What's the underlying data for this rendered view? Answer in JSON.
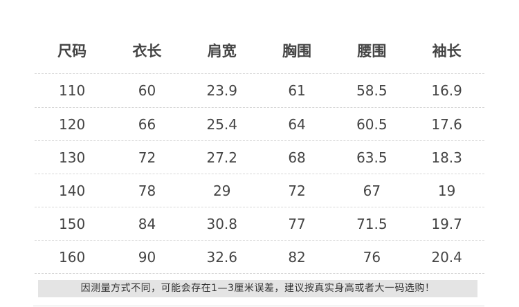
{
  "headers": [
    "尺码",
    "衣长",
    "肩宽",
    "胸围",
    "腰围",
    "袖长"
  ],
  "rows": [
    [
      "110",
      "60",
      "23.9",
      "61",
      "58.5",
      "16.9"
    ],
    [
      "120",
      "66",
      "25.4",
      "64",
      "60.5",
      "17.6"
    ],
    [
      "130",
      "72",
      "27.2",
      "68",
      "63.5",
      "18.3"
    ],
    [
      "140",
      "78",
      "29",
      "72",
      "67",
      "19"
    ],
    [
      "150",
      "84",
      "30.8",
      "77",
      "71.5",
      "19.7"
    ],
    [
      "160",
      "90",
      "32.6",
      "82",
      "76",
      "20.4"
    ]
  ],
  "note": "因测量方式不同，可能会存在1—3厘米误差，建议按真实身高或者大一码选购！"
}
